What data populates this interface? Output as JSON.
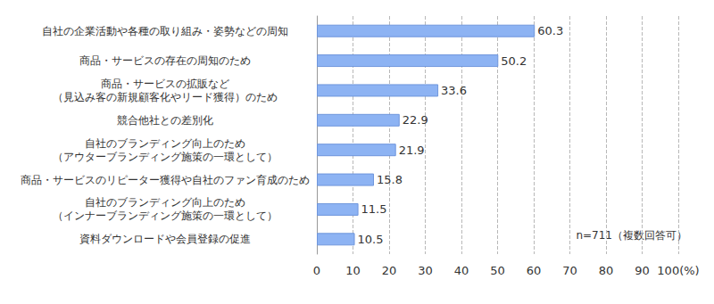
{
  "chart_data": {
    "type": "bar",
    "orientation": "horizontal",
    "categories": [
      "自社の企業活動や各種の取り組み・姿勢などの周知",
      "商品・サービスの存在の周知のため",
      "商品・サービスの拡販など\n（見込み客の新規顧客化やリード獲得）のため",
      "競合他社との差別化",
      "自社のブランディング向上のため\n（アウターブランディング施策の一環として）",
      "商品・サービスのリピーター獲得や自社のファン育成のため",
      "自社のブランディング向上のため\n（インナーブランディング施策の一環として）",
      "資料ダウンロードや会員登録の促進"
    ],
    "values": [
      60.3,
      50.2,
      33.6,
      22.9,
      21.9,
      15.8,
      11.5,
      10.5
    ],
    "color": "#8db3f3",
    "xlim": [
      0,
      100
    ],
    "xticks": [
      0,
      10,
      20,
      30,
      40,
      50,
      60,
      70,
      80,
      90,
      {
        "value": 100,
        "label": "100(%)"
      }
    ],
    "grid": true,
    "data_labels": true,
    "annotation": "n=711（複数回答可）"
  }
}
